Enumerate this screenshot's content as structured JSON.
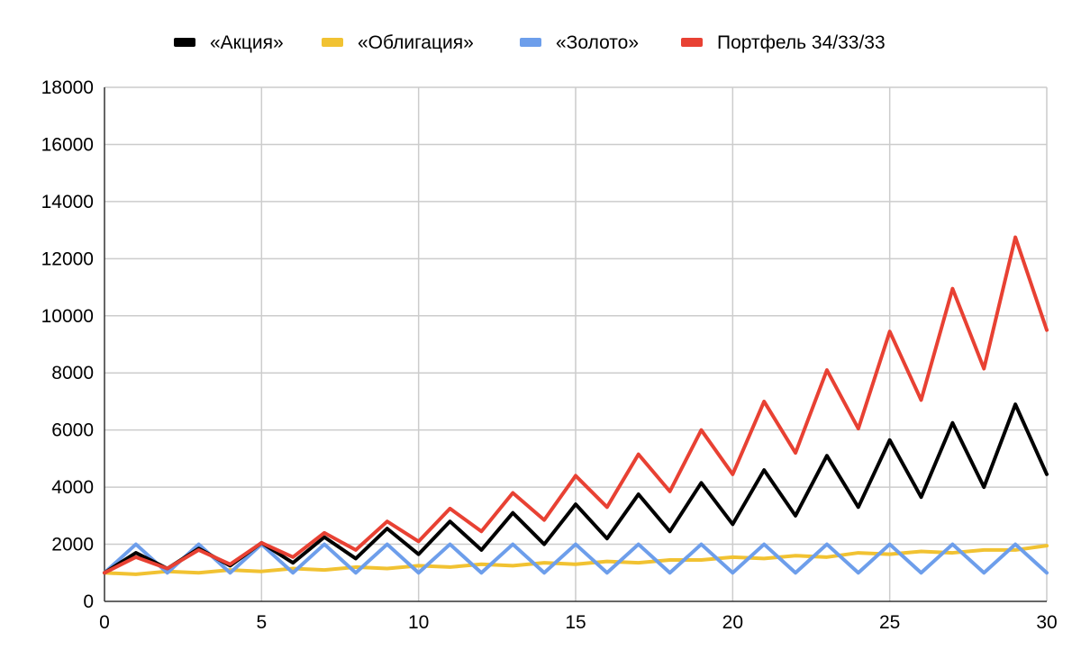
{
  "chart_data": {
    "type": "line",
    "x": [
      0,
      1,
      2,
      3,
      4,
      5,
      6,
      7,
      8,
      9,
      10,
      11,
      12,
      13,
      14,
      15,
      16,
      17,
      18,
      19,
      20,
      21,
      22,
      23,
      24,
      25,
      26,
      27,
      28,
      29,
      30
    ],
    "xlim": [
      0,
      30
    ],
    "ylim": [
      0,
      18000
    ],
    "xticks": [
      0,
      5,
      10,
      15,
      20,
      25,
      30
    ],
    "yticks": [
      0,
      2000,
      4000,
      6000,
      8000,
      10000,
      12000,
      14000,
      16000,
      18000
    ],
    "grid": true,
    "legend_position": "top",
    "series": [
      {
        "name": "«Акция»",
        "color": "#000000",
        "values": [
          1000,
          1700,
          1150,
          1850,
          1250,
          2050,
          1350,
          2250,
          1500,
          2550,
          1650,
          2800,
          1800,
          3100,
          2000,
          3400,
          2200,
          3750,
          2450,
          4150,
          2700,
          4600,
          3000,
          5100,
          3300,
          5650,
          3650,
          6250,
          4000,
          6900,
          4450
        ]
      },
      {
        "name": "«Облигация»",
        "color": "#f1c232",
        "values": [
          1000,
          950,
          1050,
          1000,
          1100,
          1050,
          1150,
          1100,
          1200,
          1150,
          1250,
          1200,
          1300,
          1250,
          1350,
          1300,
          1400,
          1350,
          1450,
          1450,
          1550,
          1500,
          1600,
          1550,
          1700,
          1650,
          1750,
          1700,
          1800,
          1800,
          1950
        ]
      },
      {
        "name": "«Золото»",
        "color": "#6d9eeb",
        "values": [
          1000,
          2000,
          1000,
          2000,
          1000,
          2000,
          1000,
          2000,
          1000,
          2000,
          1000,
          2000,
          1000,
          2000,
          1000,
          2000,
          1000,
          2000,
          1000,
          2000,
          1000,
          2000,
          1000,
          2000,
          1000,
          2000,
          1000,
          2000,
          1000,
          2000,
          1000
        ]
      },
      {
        "name": "Портфель 34/33/33",
        "color": "#e84133",
        "values": [
          1000,
          1550,
          1150,
          1800,
          1300,
          2050,
          1550,
          2400,
          1800,
          2800,
          2100,
          3250,
          2450,
          3800,
          2850,
          4400,
          3300,
          5150,
          3850,
          6000,
          4450,
          7000,
          5200,
          8100,
          6050,
          9450,
          7050,
          10950,
          8150,
          12750,
          9500
        ]
      }
    ]
  }
}
